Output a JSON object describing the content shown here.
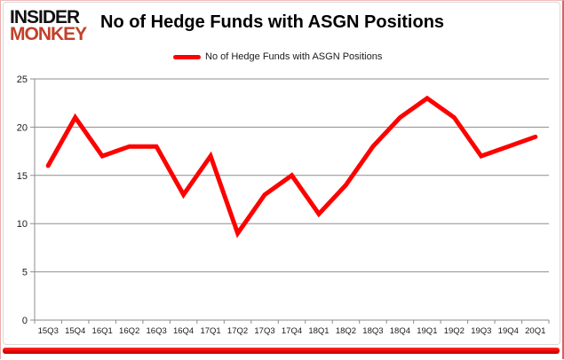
{
  "logo": {
    "line1": "INSIDER",
    "line2": "MONKEY"
  },
  "title": "No of Hedge Funds with ASGN Positions",
  "legend": {
    "label": "No of Hedge Funds with ASGN Positions",
    "swatch_color": "#fe0000"
  },
  "chart_data": {
    "type": "line",
    "title": "No of Hedge Funds with ASGN Positions",
    "categories": [
      "15Q3",
      "15Q4",
      "16Q1",
      "16Q2",
      "16Q3",
      "16Q4",
      "17Q1",
      "17Q2",
      "17Q3",
      "17Q4",
      "18Q1",
      "18Q2",
      "18Q3",
      "18Q4",
      "19Q1",
      "19Q2",
      "19Q3",
      "19Q4",
      "20Q1"
    ],
    "series": [
      {
        "name": "No of Hedge Funds with ASGN Positions",
        "color": "#fe0000",
        "values": [
          16,
          21,
          17,
          18,
          18,
          13,
          17,
          9,
          13,
          15,
          11,
          14,
          18,
          21,
          23,
          21,
          17,
          18,
          19
        ]
      }
    ],
    "xlabel": "",
    "ylabel": "",
    "ylim": [
      0,
      25
    ],
    "yticks": [
      0,
      5,
      10,
      15,
      20,
      25
    ],
    "grid": true,
    "legend_position": "top-center",
    "gridline_color": "#8e8e8e",
    "tick_label_color": "#1a1a1a"
  },
  "colors": {
    "accent_red": "#fe0000",
    "logo_red": "#c2402a",
    "frame_border": "#e9aaaa",
    "bottom_bar": "#ec0404",
    "chart_border": "#d9d9d9"
  }
}
